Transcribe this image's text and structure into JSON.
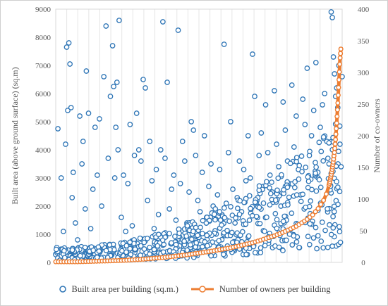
{
  "chart_data": {
    "type": "scatter",
    "title": "",
    "ylabel_left": "Built area (above ground surface) (sq.m)",
    "ylabel_right": "Number of co-owners",
    "xlabel": "",
    "x_description": "buildings ordered by number of owners (no tick labels)",
    "y_left_range": [
      0,
      9000
    ],
    "y_left_ticks": [
      "0",
      "1000",
      "2000",
      "3000",
      "4000",
      "5000",
      "6000",
      "7000",
      "8000",
      "9000"
    ],
    "y_right_range": [
      0,
      400
    ],
    "y_right_ticks": [
      "0",
      "50",
      "100",
      "150",
      "200",
      "250",
      "300",
      "350",
      "400"
    ],
    "grid": "vertical",
    "legend_position": "bottom",
    "series": [
      {
        "name": "Built area per building (sq.m.)",
        "axis": "left",
        "marker": "open-circle",
        "color": "#2e75b6",
        "points": [
          [
            2,
            4750
          ],
          [
            5,
            3000
          ],
          [
            7,
            1100
          ],
          [
            9,
            4200
          ],
          [
            10,
            7650
          ],
          [
            11,
            5400
          ],
          [
            12,
            7800
          ],
          [
            13,
            7050
          ],
          [
            14,
            5500
          ],
          [
            15,
            2300
          ],
          [
            16,
            3200
          ],
          [
            18,
            1400
          ],
          [
            20,
            800
          ],
          [
            22,
            5200
          ],
          [
            24,
            3500
          ],
          [
            25,
            4300
          ],
          [
            27,
            1900
          ],
          [
            28,
            6800
          ],
          [
            30,
            5300
          ],
          [
            32,
            1200
          ],
          [
            34,
            2600
          ],
          [
            36,
            4800
          ],
          [
            38,
            3100
          ],
          [
            40,
            5100
          ],
          [
            42,
            2000
          ],
          [
            44,
            6600
          ],
          [
            46,
            8400
          ],
          [
            48,
            3700
          ],
          [
            50,
            5900
          ],
          [
            52,
            7700
          ],
          [
            53,
            6250
          ],
          [
            54,
            3000
          ],
          [
            55,
            4800
          ],
          [
            56,
            6400
          ],
          [
            57,
            4000
          ],
          [
            58,
            8600
          ],
          [
            60,
            1600
          ],
          [
            62,
            3100
          ],
          [
            64,
            1100
          ],
          [
            66,
            2800
          ],
          [
            68,
            4900
          ],
          [
            70,
            1300
          ],
          [
            72,
            3800
          ],
          [
            74,
            5300
          ],
          [
            76,
            4000
          ],
          [
            78,
            3600
          ],
          [
            80,
            6500
          ],
          [
            82,
            6200
          ],
          [
            84,
            2200
          ],
          [
            86,
            4300
          ],
          [
            88,
            2900
          ],
          [
            90,
            1200
          ],
          [
            92,
            3300
          ],
          [
            94,
            1700
          ],
          [
            96,
            4000
          ],
          [
            98,
            8550
          ],
          [
            100,
            3700
          ],
          [
            102,
            6400
          ],
          [
            104,
            1900
          ],
          [
            106,
            2600
          ],
          [
            108,
            3100
          ],
          [
            110,
            1500
          ],
          [
            112,
            8250
          ],
          [
            114,
            2800
          ],
          [
            116,
            4300
          ],
          [
            118,
            3600
          ],
          [
            120,
            1400
          ],
          [
            122,
            2500
          ],
          [
            124,
            5000
          ],
          [
            126,
            4700
          ],
          [
            128,
            3800
          ],
          [
            130,
            2200
          ],
          [
            132,
            1800
          ],
          [
            134,
            3200
          ],
          [
            136,
            4500
          ],
          [
            138,
            1600
          ],
          [
            140,
            2700
          ],
          [
            142,
            3500
          ],
          [
            144,
            2000
          ],
          [
            146,
            1900
          ],
          [
            148,
            2400
          ],
          [
            150,
            3300
          ],
          [
            152,
            1700
          ],
          [
            154,
            7750
          ],
          [
            156,
            2100
          ],
          [
            158,
            3900
          ],
          [
            160,
            5000
          ],
          [
            162,
            2600
          ],
          [
            164,
            1400
          ],
          [
            166,
            2300
          ],
          [
            168,
            3600
          ],
          [
            170,
            1800
          ],
          [
            172,
            3300
          ],
          [
            174,
            2900
          ],
          [
            176,
            4500
          ],
          [
            178,
            3000
          ],
          [
            180,
            7400
          ],
          [
            182,
            5900
          ],
          [
            184,
            2200
          ],
          [
            186,
            3800
          ],
          [
            188,
            4600
          ],
          [
            190,
            2700
          ],
          [
            192,
            5600
          ],
          [
            194,
            3900
          ],
          [
            196,
            3100
          ],
          [
            198,
            2500
          ],
          [
            200,
            6100
          ],
          [
            202,
            4200
          ],
          [
            204,
            3400
          ],
          [
            206,
            2000
          ],
          [
            208,
            5700
          ],
          [
            210,
            4700
          ],
          [
            212,
            3600
          ],
          [
            214,
            2800
          ],
          [
            216,
            6300
          ],
          [
            218,
            4100
          ],
          [
            220,
            5200
          ],
          [
            222,
            3300
          ],
          [
            224,
            2400
          ],
          [
            226,
            5800
          ],
          [
            228,
            4900
          ],
          [
            230,
            6900
          ],
          [
            232,
            3800
          ],
          [
            234,
            4500
          ],
          [
            236,
            5400
          ],
          [
            238,
            7100
          ],
          [
            240,
            3000
          ],
          [
            242,
            4800
          ],
          [
            244,
            5600
          ],
          [
            246,
            6000
          ],
          [
            248,
            4300
          ],
          [
            250,
            3500
          ],
          [
            252,
            8900
          ],
          [
            253,
            8700
          ],
          [
            254,
            7300
          ],
          [
            255,
            6700
          ],
          [
            256,
            5900
          ],
          [
            257,
            6200
          ],
          [
            258,
            5500
          ],
          [
            259,
            7000
          ],
          [
            260,
            4200
          ],
          [
            261,
            3400
          ],
          [
            262,
            6600
          ]
        ]
      },
      {
        "name": "Number of owners per building",
        "axis": "right",
        "marker": "line-with-open-circles",
        "color": "#ed7d31",
        "curve": [
          [
            0,
            1
          ],
          [
            20,
            1
          ],
          [
            40,
            2
          ],
          [
            60,
            3
          ],
          [
            80,
            5
          ],
          [
            100,
            8
          ],
          [
            120,
            12
          ],
          [
            140,
            17
          ],
          [
            160,
            23
          ],
          [
            180,
            31
          ],
          [
            200,
            42
          ],
          [
            210,
            49
          ],
          [
            220,
            57
          ],
          [
            230,
            68
          ],
          [
            235,
            75
          ],
          [
            240,
            85
          ],
          [
            245,
            98
          ],
          [
            248,
            110
          ],
          [
            250,
            122
          ],
          [
            252,
            138
          ],
          [
            254,
            160
          ],
          [
            255,
            175
          ],
          [
            256,
            195
          ],
          [
            257,
            220
          ],
          [
            258,
            250
          ],
          [
            259,
            285
          ],
          [
            260,
            320
          ],
          [
            261,
            340
          ]
        ]
      }
    ],
    "x_range": [
      0,
      262
    ]
  }
}
